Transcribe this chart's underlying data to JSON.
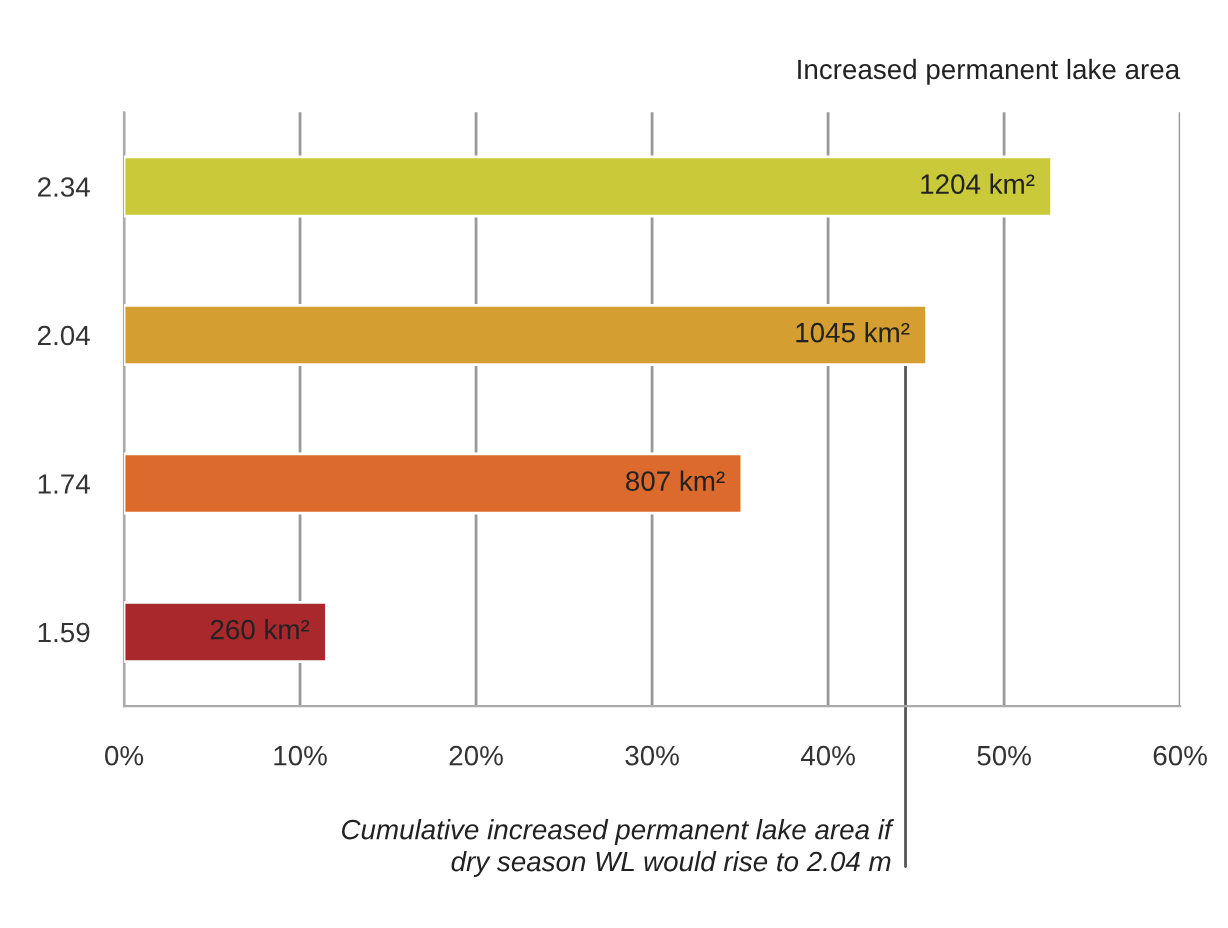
{
  "chart_data": {
    "type": "bar",
    "orientation": "horizontal",
    "title": "Increased permanent lake area",
    "categories": [
      "2.34",
      "2.04",
      "1.74",
      "1.59"
    ],
    "values": [
      52.7,
      45.6,
      35.1,
      11.5
    ],
    "colors": [
      "#c9c93a",
      "#d49e30",
      "#dc6a2c",
      "#a8282c"
    ],
    "annotations": [
      {
        "text": "1204 km²",
        "x": 52.7,
        "y": "2.34"
      },
      {
        "text": "1045 km²",
        "x": 45.6,
        "y": "2.04"
      },
      {
        "text": "807 km²",
        "x": 35.1,
        "y": "1.74"
      },
      {
        "text": "260 km²",
        "x": 11.5,
        "y": "1.59"
      }
    ],
    "xlim": [
      0,
      60
    ],
    "xticks": [
      {
        "value": 0,
        "label": "0%"
      },
      {
        "value": 10,
        "label": "10%"
      },
      {
        "value": 20,
        "label": "20%"
      },
      {
        "value": 30,
        "label": "30%"
      },
      {
        "value": 40,
        "label": "40%"
      },
      {
        "value": 50,
        "label": "50%"
      },
      {
        "value": 60,
        "label": "60%"
      }
    ],
    "grid": "x",
    "ref_lines": [
      {
        "axis": "x",
        "value": 44.4,
        "label": "Cumulative increased permanent lake area if\ndry season WL would rise to 2.04 m",
        "color": "#555555"
      }
    ]
  }
}
